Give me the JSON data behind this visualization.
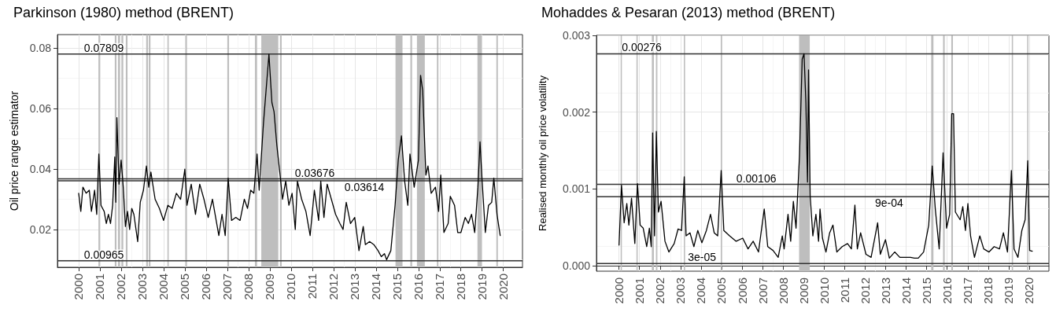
{
  "chart_data": [
    {
      "type": "line",
      "title": "Parkinson (1980) method (BRENT)",
      "ylabel": "Oil price range estimator",
      "grid": true,
      "marker": "none",
      "line_style": "solid",
      "xlim": [
        1999,
        2020.9
      ],
      "xticks": [
        2000,
        2001,
        2002,
        2003,
        2004,
        2005,
        2006,
        2007,
        2008,
        2009,
        2010,
        2011,
        2012,
        2013,
        2014,
        2015,
        2016,
        2017,
        2018,
        2019,
        2020
      ],
      "ylim": [
        0.0075,
        0.0845
      ],
      "yticks": [
        0.02,
        0.04,
        0.06,
        0.08
      ],
      "series": [
        {
          "color": "#000000",
          "x": [
            2000.0,
            2000.1,
            2000.2,
            2000.35,
            2000.5,
            2000.6,
            2000.75,
            2000.85,
            2000.95,
            2001.05,
            2001.2,
            2001.3,
            2001.4,
            2001.5,
            2001.6,
            2001.7,
            2001.75,
            2001.8,
            2001.9,
            2002.0,
            2002.1,
            2002.2,
            2002.3,
            2002.4,
            2002.5,
            2002.6,
            2002.78,
            2002.9,
            2003.05,
            2003.19,
            2003.3,
            2003.4,
            2003.6,
            2003.8,
            2004.0,
            2004.2,
            2004.4,
            2004.6,
            2004.8,
            2005.0,
            2005.1,
            2005.3,
            2005.5,
            2005.7,
            2005.9,
            2006.1,
            2006.3,
            2006.45,
            2006.6,
            2006.75,
            2006.9,
            2007.04,
            2007.2,
            2007.4,
            2007.6,
            2007.8,
            2007.95,
            2008.1,
            2008.25,
            2008.4,
            2008.5,
            2008.7,
            2008.96,
            2009.1,
            2009.2,
            2009.33,
            2009.5,
            2009.6,
            2009.75,
            2009.9,
            2010.05,
            2010.2,
            2010.3,
            2010.5,
            2010.7,
            2010.9,
            2011.1,
            2011.3,
            2011.4,
            2011.55,
            2011.7,
            2011.9,
            2012.1,
            2012.3,
            2012.45,
            2012.6,
            2012.8,
            2013.0,
            2013.2,
            2013.4,
            2013.5,
            2013.7,
            2013.9,
            2014.1,
            2014.25,
            2014.4,
            2014.5,
            2014.7,
            2014.9,
            2015.05,
            2015.2,
            2015.35,
            2015.5,
            2015.6,
            2015.8,
            2016.0,
            2016.1,
            2016.2,
            2016.35,
            2016.45,
            2016.6,
            2016.8,
            2016.95,
            2017.05,
            2017.2,
            2017.4,
            2017.5,
            2017.7,
            2017.85,
            2018.0,
            2018.2,
            2018.35,
            2018.5,
            2018.65,
            2018.8,
            2018.9,
            2019.0,
            2019.15,
            2019.3,
            2019.45,
            2019.55,
            2019.7,
            2019.85
          ],
          "values": [
            0.032,
            0.026,
            0.034,
            0.032,
            0.033,
            0.026,
            0.033,
            0.025,
            0.045,
            0.028,
            0.026,
            0.022,
            0.025,
            0.022,
            0.028,
            0.044,
            0.029,
            0.057,
            0.035,
            0.043,
            0.034,
            0.021,
            0.026,
            0.02,
            0.027,
            0.025,
            0.016,
            0.029,
            0.033,
            0.041,
            0.034,
            0.039,
            0.03,
            0.027,
            0.023,
            0.028,
            0.027,
            0.032,
            0.03,
            0.04,
            0.028,
            0.035,
            0.025,
            0.035,
            0.03,
            0.024,
            0.03,
            0.024,
            0.018,
            0.025,
            0.018,
            0.037,
            0.023,
            0.024,
            0.023,
            0.03,
            0.027,
            0.033,
            0.032,
            0.045,
            0.033,
            0.055,
            0.078,
            0.062,
            0.059,
            0.048,
            0.037,
            0.03,
            0.036,
            0.028,
            0.032,
            0.02,
            0.036,
            0.03,
            0.026,
            0.018,
            0.033,
            0.023,
            0.036,
            0.024,
            0.035,
            0.03,
            0.025,
            0.022,
            0.02,
            0.029,
            0.022,
            0.024,
            0.013,
            0.021,
            0.015,
            0.016,
            0.015,
            0.013,
            0.011,
            0.012,
            0.01,
            0.013,
            0.028,
            0.043,
            0.051,
            0.036,
            0.028,
            0.045,
            0.034,
            0.043,
            0.071,
            0.066,
            0.038,
            0.041,
            0.032,
            0.034,
            0.026,
            0.038,
            0.019,
            0.022,
            0.031,
            0.028,
            0.019,
            0.019,
            0.024,
            0.022,
            0.025,
            0.019,
            0.034,
            0.049,
            0.036,
            0.019,
            0.028,
            0.029,
            0.037,
            0.025,
            0.018
          ]
        }
      ],
      "ref_lines": [
        {
          "axis": "y",
          "value": 0.07809,
          "label": "0.07809"
        },
        {
          "axis": "y",
          "value": 0.03676,
          "label": "0.03676"
        },
        {
          "axis": "y",
          "value": 0.03614,
          "label": "0.03614"
        },
        {
          "axis": "y",
          "value": 0.00965,
          "label": "0.00965"
        }
      ],
      "bands": [
        {
          "axis": "x",
          "from": 2000.93,
          "to": 2001.0
        },
        {
          "axis": "x",
          "from": 2001.7,
          "to": 2001.78
        },
        {
          "axis": "x",
          "from": 2001.85,
          "to": 2001.95
        },
        {
          "axis": "x",
          "from": 2002.02,
          "to": 2002.1
        },
        {
          "axis": "x",
          "from": 2002.22,
          "to": 2002.3
        },
        {
          "axis": "x",
          "from": 2003.18,
          "to": 2003.26
        },
        {
          "axis": "x",
          "from": 2003.3,
          "to": 2003.38
        },
        {
          "axis": "x",
          "from": 2004.18,
          "to": 2004.24
        },
        {
          "axis": "x",
          "from": 2005.03,
          "to": 2005.1
        },
        {
          "axis": "x",
          "from": 2007.0,
          "to": 2007.08
        },
        {
          "axis": "x",
          "from": 2008.3,
          "to": 2008.4
        },
        {
          "axis": "x",
          "from": 2008.6,
          "to": 2009.4
        },
        {
          "axis": "x",
          "from": 2009.48,
          "to": 2009.56
        },
        {
          "axis": "x",
          "from": 2014.92,
          "to": 2015.25
        },
        {
          "axis": "x",
          "from": 2015.62,
          "to": 2015.7
        },
        {
          "axis": "x",
          "from": 2015.93,
          "to": 2016.3
        },
        {
          "axis": "x",
          "from": 2016.87,
          "to": 2016.94
        },
        {
          "axis": "x",
          "from": 2018.78,
          "to": 2018.98
        },
        {
          "axis": "x",
          "from": 2019.67,
          "to": 2019.74
        }
      ]
    },
    {
      "type": "line",
      "title": "Mohaddes & Pesaran (2013) method (BRENT)",
      "ylabel": "Realised monthly oil price volatility",
      "grid": true,
      "marker": "none",
      "line_style": "solid",
      "xlim": [
        1998.9,
        2020.96
      ],
      "xticks": [
        2000,
        2001,
        2002,
        2003,
        2004,
        2005,
        2006,
        2007,
        2008,
        2009,
        2010,
        2011,
        2012,
        2013,
        2014,
        2015,
        2016,
        2017,
        2018,
        2019,
        2020
      ],
      "ylim": [
        -7e-05,
        0.003
      ],
      "yticks": [
        {
          "value": 0,
          "label": "0.000"
        },
        0.001,
        0.002,
        0.003
      ],
      "series": [
        {
          "color": "#000000",
          "x": [
            2000.0,
            2000.12,
            2000.25,
            2000.38,
            2000.48,
            2000.61,
            2000.77,
            2000.9,
            2001.03,
            2001.18,
            2001.35,
            2001.48,
            2001.57,
            2001.64,
            2001.73,
            2001.82,
            2001.92,
            2002.05,
            2002.24,
            2002.43,
            2002.69,
            2002.88,
            2003.05,
            2003.18,
            2003.27,
            2003.46,
            2003.65,
            2003.84,
            2004.04,
            2004.26,
            2004.46,
            2004.64,
            2004.81,
            2004.98,
            2005.11,
            2005.39,
            2005.71,
            2006.03,
            2006.29,
            2006.54,
            2006.8,
            2007.08,
            2007.25,
            2007.51,
            2007.76,
            2007.96,
            2008.05,
            2008.24,
            2008.37,
            2008.5,
            2008.63,
            2008.8,
            2008.93,
            2009.02,
            2009.11,
            2009.19,
            2009.24,
            2009.32,
            2009.45,
            2009.6,
            2009.73,
            2009.8,
            2009.92,
            2010.09,
            2010.27,
            2010.43,
            2010.62,
            2010.88,
            2011.14,
            2011.33,
            2011.5,
            2011.62,
            2011.78,
            2012.04,
            2012.29,
            2012.61,
            2012.74,
            2012.99,
            2013.18,
            2013.44,
            2013.69,
            2013.95,
            2014.21,
            2014.4,
            2014.59,
            2014.85,
            2015.1,
            2015.27,
            2015.42,
            2015.61,
            2015.8,
            2015.97,
            2016.12,
            2016.22,
            2016.31,
            2016.4,
            2016.63,
            2016.76,
            2016.89,
            2017.01,
            2017.14,
            2017.33,
            2017.59,
            2017.78,
            2018.04,
            2018.29,
            2018.55,
            2018.74,
            2018.94,
            2019.13,
            2019.26,
            2019.45,
            2019.64,
            2019.8,
            2019.93,
            2020.02,
            2020.15
          ],
          "values": [
            0.00027,
            0.00105,
            0.00056,
            0.00081,
            0.00053,
            0.00088,
            0.00029,
            0.00107,
            0.00053,
            0.00049,
            0.00025,
            0.00049,
            0.00025,
            0.00173,
            0.00039,
            0.00175,
            0.0007,
            0.00084,
            0.00032,
            0.00018,
            0.00029,
            0.00048,
            0.00046,
            0.00116,
            0.00039,
            0.00043,
            0.00025,
            0.00046,
            0.0003,
            0.00046,
            0.00067,
            0.00043,
            0.00039,
            0.00124,
            0.00046,
            0.00039,
            0.00032,
            0.00036,
            0.00022,
            0.00032,
            0.00018,
            0.00074,
            0.00025,
            0.0002,
            0.00011,
            0.00039,
            0.00022,
            0.00067,
            0.00032,
            0.00084,
            0.00049,
            0.00144,
            0.00269,
            0.00276,
            0.00213,
            0.00109,
            0.00255,
            0.00091,
            0.00039,
            0.00067,
            0.00032,
            0.00074,
            0.00036,
            0.00018,
            0.00043,
            0.00053,
            0.00018,
            0.00025,
            0.00029,
            0.00022,
            0.00079,
            0.00022,
            0.00043,
            0.00015,
            0.00011,
            0.00056,
            0.00015,
            0.00034,
            0.0001,
            0.00018,
            0.00011,
            0.00011,
            0.00011,
            0.0001,
            0.0001,
            0.00018,
            0.00053,
            0.0013,
            0.00074,
            0.00022,
            0.00147,
            0.00049,
            0.00067,
            0.00198,
            0.00198,
            0.0007,
            0.0006,
            0.00077,
            0.00046,
            0.00081,
            0.00039,
            0.00011,
            0.00039,
            0.00022,
            0.00018,
            0.00025,
            0.00022,
            0.00043,
            0.00018,
            0.00124,
            0.00022,
            0.00011,
            0.00046,
            0.0006,
            0.00137,
            0.0002,
            0.00019
          ]
        }
      ],
      "ref_lines": [
        {
          "axis": "y",
          "value": 0.00276,
          "label": "0.00276"
        },
        {
          "axis": "y",
          "value": 0.00106,
          "label": "0.00106"
        },
        {
          "axis": "y",
          "value": 0.0009,
          "label": "9e-04"
        },
        {
          "axis": "y",
          "value": 3e-05,
          "label": "3e-05"
        }
      ],
      "bands": [
        {
          "axis": "x",
          "from": 2000.08,
          "to": 2000.14
        },
        {
          "axis": "x",
          "from": 2000.85,
          "to": 2000.91
        },
        {
          "axis": "x",
          "from": 2001.6,
          "to": 2001.7
        },
        {
          "axis": "x",
          "from": 2001.8,
          "to": 2001.87
        },
        {
          "axis": "x",
          "from": 2003.16,
          "to": 2003.22
        },
        {
          "axis": "x",
          "from": 2004.96,
          "to": 2005.02
        },
        {
          "axis": "x",
          "from": 2008.78,
          "to": 2009.3
        },
        {
          "axis": "x",
          "from": 2015.22,
          "to": 2015.33
        },
        {
          "axis": "x",
          "from": 2015.8,
          "to": 2015.88
        },
        {
          "axis": "x",
          "from": 2016.2,
          "to": 2016.28
        },
        {
          "axis": "x",
          "from": 2019.15,
          "to": 2019.21
        },
        {
          "axis": "x",
          "from": 2019.9,
          "to": 2019.96
        }
      ]
    }
  ]
}
